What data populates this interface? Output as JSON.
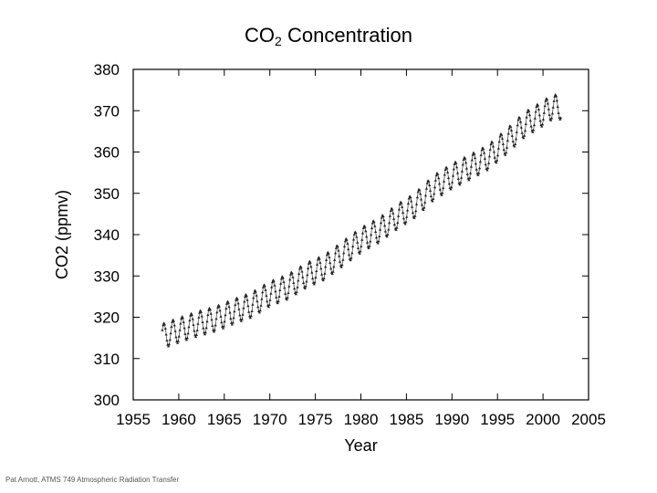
{
  "title": {
    "main": "CO",
    "sub": "2",
    "rest": " Concentration"
  },
  "footer": "Pat Arnott, ATMS 749 Atmospheric Radiation Transfer",
  "chart_data": {
    "type": "line",
    "title": "CO2 Concentration",
    "xlabel": "Year",
    "ylabel": "CO2 (ppmv)",
    "xlim": [
      1955,
      2005
    ],
    "ylim": [
      300,
      380
    ],
    "xticks": [
      1955,
      1960,
      1965,
      1970,
      1975,
      1980,
      1985,
      1990,
      1995,
      2000,
      2005
    ],
    "yticks": [
      300,
      310,
      320,
      330,
      340,
      350,
      360,
      370,
      380
    ],
    "grid": false,
    "legend": "none",
    "line_color": "#555555",
    "marker_color": "#222222",
    "seasonal_amplitude_ppmv": 3.0,
    "annual_mean": {
      "x": [
        1958,
        1960,
        1962,
        1964,
        1966,
        1968,
        1970,
        1972,
        1974,
        1976,
        1978,
        1980,
        1982,
        1984,
        1986,
        1988,
        1990,
        1992,
        1994,
        1996,
        1998,
        2000,
        2001
      ],
      "y": [
        315.3,
        316.9,
        318.4,
        319.6,
        321.4,
        323.0,
        325.7,
        327.4,
        330.2,
        332.1,
        335.4,
        338.7,
        341.1,
        344.4,
        347.2,
        351.4,
        354.2,
        356.4,
        358.8,
        362.6,
        366.7,
        369.4,
        370.9
      ]
    }
  }
}
